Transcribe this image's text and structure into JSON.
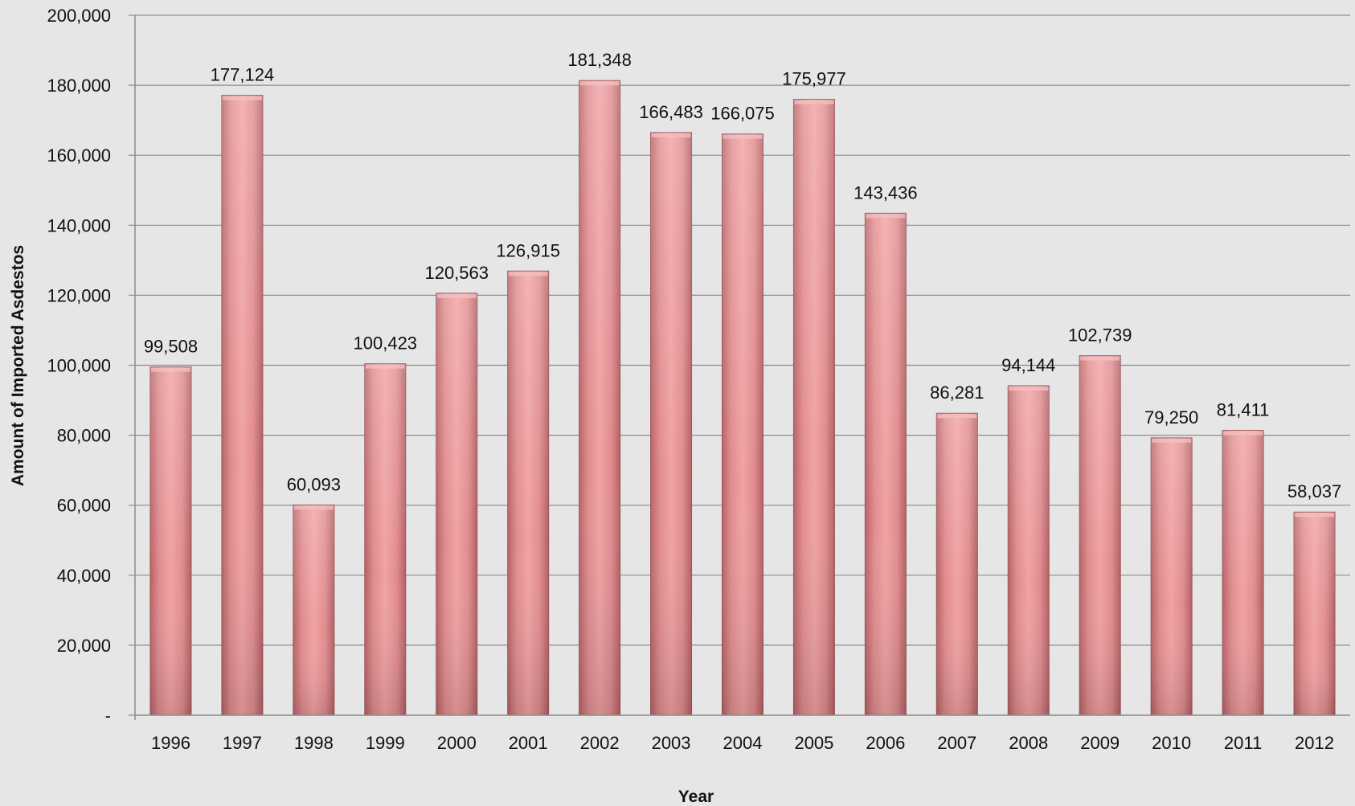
{
  "chart_data": {
    "type": "bar",
    "title": "",
    "xlabel": "Year",
    "ylabel": "Amount of Imported Asdestos",
    "categories": [
      "1996",
      "1997",
      "1998",
      "1999",
      "2000",
      "2001",
      "2002",
      "2003",
      "2004",
      "2005",
      "2006",
      "2007",
      "2008",
      "2009",
      "2010",
      "2011",
      "2012"
    ],
    "values": [
      99508,
      177124,
      60093,
      100423,
      120563,
      126915,
      181348,
      166483,
      166075,
      175977,
      143436,
      86281,
      94144,
      102739,
      79250,
      81411,
      58037
    ],
    "value_labels": [
      "99,508",
      "177,124",
      "60,093",
      "100,423",
      "120,563",
      "126,915",
      "181,348",
      "166,483",
      "166,075",
      "175,977",
      "143,436",
      "86,281",
      "94,144",
      "102,739",
      "79,250",
      "81,411",
      "58,037"
    ],
    "ylim": [
      0,
      200000
    ],
    "yticks": [
      0,
      20000,
      40000,
      60000,
      80000,
      100000,
      120000,
      140000,
      160000,
      180000,
      200000
    ],
    "ytick_labels": [
      "-",
      "20,000",
      "40,000",
      "60,000",
      "80,000",
      "100,000",
      "120,000",
      "140,000",
      "160,000",
      "180,000",
      "200,000"
    ],
    "grid": true,
    "legend": "none",
    "colors": {
      "background": "#e6e6e6",
      "bar": "#e2898c",
      "bar_edge": "#9a5557",
      "gridline": "#8c8c8c"
    }
  }
}
